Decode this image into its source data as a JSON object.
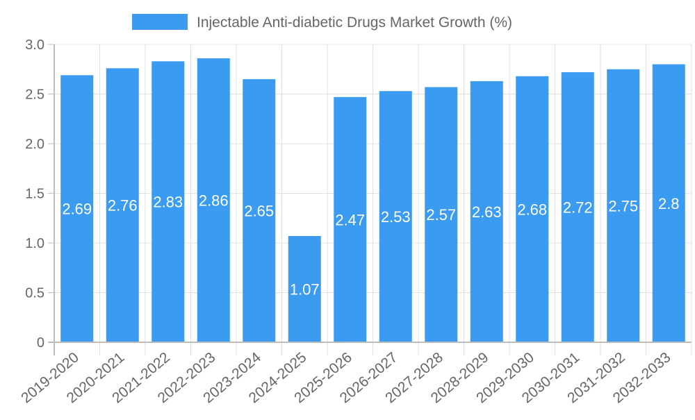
{
  "chart_data": {
    "type": "bar",
    "title": "",
    "legend": {
      "label": "Injectable Anti-diabetic Drugs Market Growth (%)",
      "position": "top"
    },
    "categories": [
      "2019-2020",
      "2020-2021",
      "2021-2022",
      "2022-2023",
      "2023-2024",
      "2024-2025",
      "2025-2026",
      "2026-2027",
      "2027-2028",
      "2028-2029",
      "2029-2030",
      "2030-2031",
      "2031-2032",
      "2032-2033"
    ],
    "values": [
      2.69,
      2.76,
      2.83,
      2.86,
      2.65,
      1.07,
      2.47,
      2.53,
      2.57,
      2.63,
      2.68,
      2.72,
      2.75,
      2.8
    ],
    "data_labels": [
      "2.69",
      "2.76",
      "2.83",
      "2.86",
      "2.65",
      "1.07",
      "2.47",
      "2.53",
      "2.57",
      "2.63",
      "2.68",
      "2.72",
      "2.75",
      "2.8"
    ],
    "xlabel": "",
    "ylabel": "",
    "ylim": [
      0,
      3.0
    ],
    "yticks": [
      "0",
      "0.5",
      "1.0",
      "1.5",
      "2.0",
      "2.5",
      "3.0"
    ],
    "grid": true,
    "colors": {
      "bar": "#3a9bf0",
      "grid": "#e0e0e0",
      "axis": "#bdbdbd",
      "text": "#666666",
      "label": "#ffffff"
    }
  }
}
